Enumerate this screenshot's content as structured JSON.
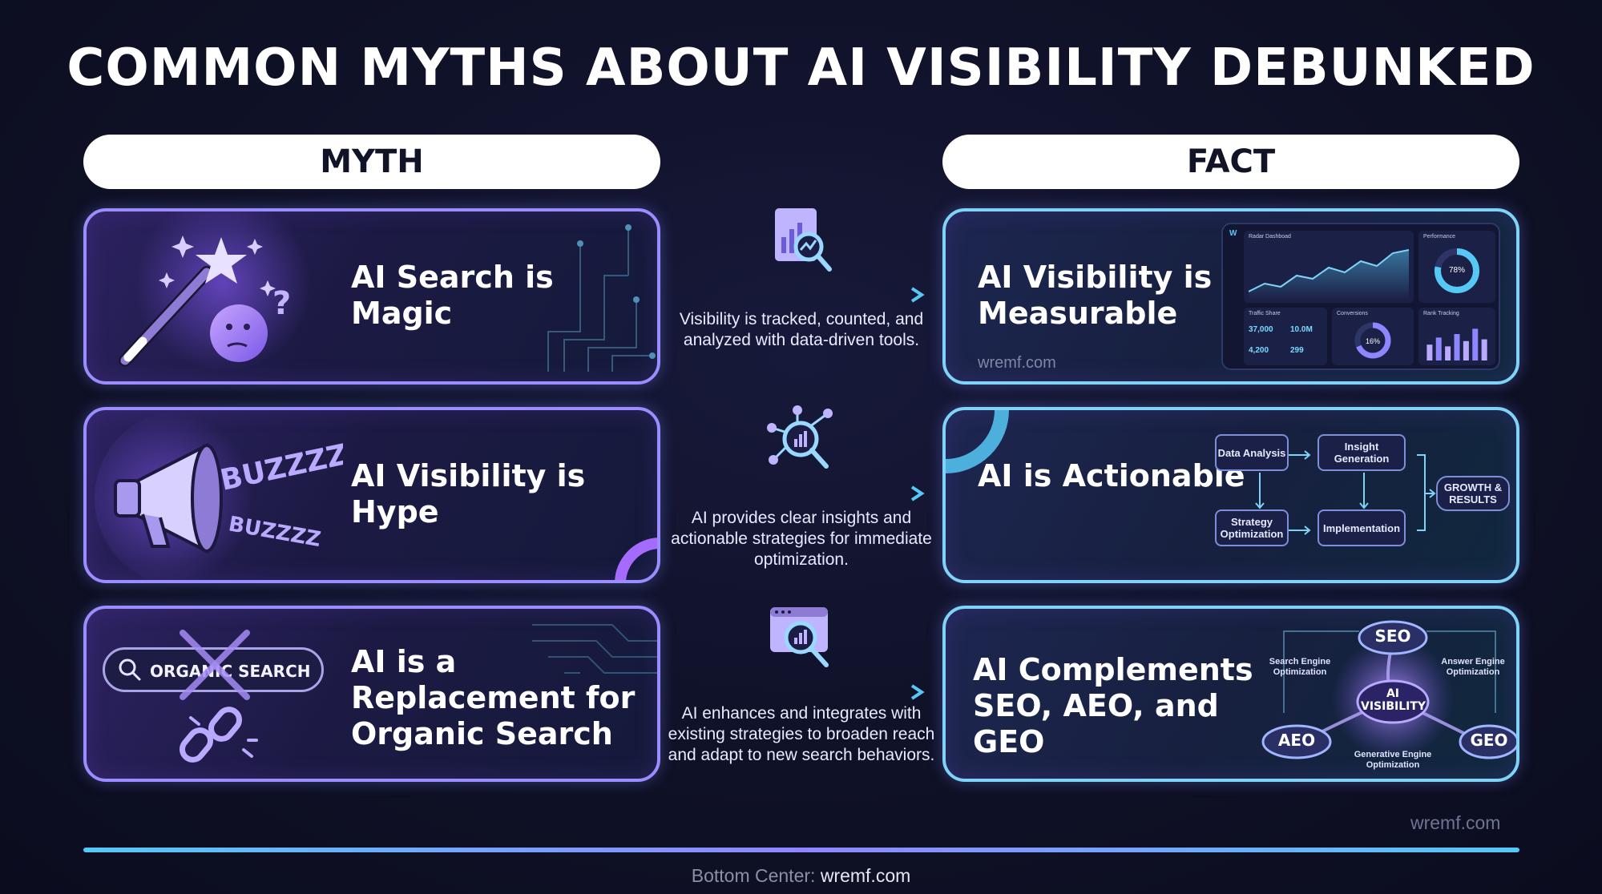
{
  "title": "COMMON MYTHS ABOUT AI VISIBILITY DEBUNKED",
  "headers": {
    "myth": "MYTH",
    "fact": "FACT"
  },
  "rows": [
    {
      "myth": "AI Search is Magic",
      "middle_icon": "report-search-icon",
      "middle_text": "Visibility is tracked, counted, and analyzed with data-driven tools.",
      "fact": "AI Visibility is Measurable",
      "fact_watermark": "wremf.com"
    },
    {
      "myth": "AI Visibility is Hype",
      "middle_icon": "network-analysis-icon",
      "middle_text": "AI provides clear insights and actionable strategies for immediate optimization.",
      "fact": "AI is Actionable"
    },
    {
      "myth": "AI is a Replacement for Organic Search",
      "middle_icon": "browser-analytics-icon",
      "middle_text": "AI enhances and integrates with existing strategies to broaden reach and adapt to new search behaviors.",
      "fact": "AI Complements SEO, AEO, and GEO"
    }
  ],
  "myth_art": {
    "buzz_big": "BUZZZZ",
    "buzz_small": "BUZZZZ",
    "search_bar": "ORGANIC SEARCH"
  },
  "dashboard": {
    "logo": "W",
    "panel_main": "Radar Dashboad",
    "panel_performance": "Performance",
    "performance_value": "78%",
    "panel_traffic": "Traffic Share",
    "traffic_a": "37,000",
    "traffic_b": "10.0M",
    "traffic_c": "4,200",
    "traffic_d": "299",
    "panel_conversions": "Conversions",
    "conversions_value": "16%",
    "panel_rank": "Rank Tracking",
    "rank_bars": [
      0.45,
      0.65,
      0.4,
      0.75,
      0.55,
      0.9,
      0.6
    ]
  },
  "flow": {
    "data_analysis": "Data Analysis",
    "insight_generation": "Insight Generation",
    "strategy_optimization": "Strategy Optimization",
    "implementation": "Implementation",
    "growth": "GROWTH & RESULTS"
  },
  "seo_diagram": {
    "seo": "SEO",
    "aeo": "AEO",
    "geo": "GEO",
    "center": "AI VISIBILITY",
    "seo_desc": "Search Engine Optimization",
    "aeo_desc": "Answer Engine Optimization",
    "geo_desc": "Generative Engine Optimization"
  },
  "watermark_right": "wremf.com",
  "footer": {
    "label": "Bottom Center:",
    "site": "wremf.com"
  },
  "colors": {
    "accent_purple": "#9b8cff",
    "accent_cyan": "#56c8f5",
    "background": "#0f1127"
  }
}
